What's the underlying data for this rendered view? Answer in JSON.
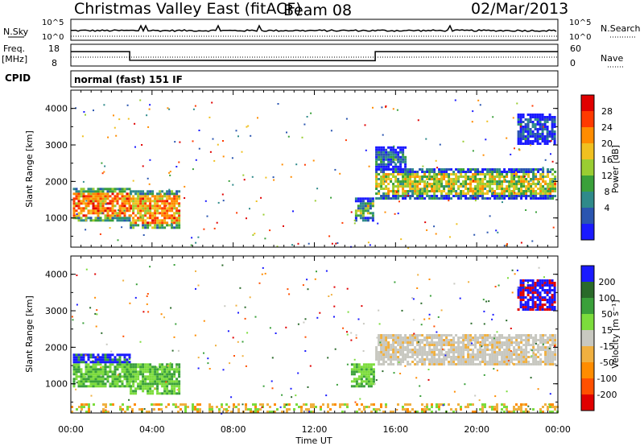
{
  "header": {
    "title": "Christmas Valley East (fitACF)",
    "beam": "Beam 08",
    "date": "02/Mar/2013"
  },
  "top_panels": {
    "nsky_label": "N.Sky",
    "nsky_ticks": [
      "10^5",
      "10^0"
    ],
    "nsearch_label": "N.Search",
    "nsearch_ticks": [
      "10^5",
      "10^0"
    ],
    "freq_label_1": "Freq.",
    "freq_label_2": "[MHz]",
    "freq_ticks": [
      "18",
      "8"
    ],
    "nave_label": "Nave",
    "nave_ticks": [
      "60",
      "0"
    ],
    "cpid_label": "CPID",
    "cpid_value": "normal (fast) 151 IF"
  },
  "chart_data": [
    {
      "type": "heatmap",
      "name": "power",
      "ylabel": "Slant Range [km]",
      "xlabel": "",
      "x_ticks": [
        "00:00",
        "04:00",
        "08:00",
        "12:00",
        "16:00",
        "20:00",
        "00:00"
      ],
      "y_ticks": [
        "1000",
        "2000",
        "3000",
        "4000"
      ],
      "ylim": [
        200,
        4500
      ],
      "xlim_hours": [
        0,
        24
      ],
      "colorbar_label": "Power [dB]",
      "colorbar_ticks": [
        "4",
        "8",
        "12",
        "16",
        "20",
        "24",
        "28"
      ],
      "colorbar_colors": [
        "#1a1aff",
        "#2a55b0",
        "#2f8a8a",
        "#3aa03a",
        "#9acd32",
        "#f0c020",
        "#ff8c00",
        "#ff3a00",
        "#e00000"
      ],
      "regions": [
        {
          "t0": 0.1,
          "t1": 2.9,
          "r0": 900,
          "r1": 1800,
          "level": 0.9
        },
        {
          "t0": 2.9,
          "t1": 5.3,
          "r0": 700,
          "r1": 1700,
          "level": 0.85
        },
        {
          "t0": 14.0,
          "t1": 14.9,
          "r0": 900,
          "r1": 1500,
          "level": 0.6
        },
        {
          "t0": 15.0,
          "t1": 23.9,
          "r0": 1500,
          "r1": 2300,
          "level": 0.7
        },
        {
          "t0": 15.0,
          "t1": 16.5,
          "r0": 2300,
          "r1": 2900,
          "level": 0.4
        },
        {
          "t0": 22.0,
          "t1": 23.8,
          "r0": 3000,
          "r1": 3800,
          "level": 0.3
        }
      ]
    },
    {
      "type": "heatmap",
      "name": "velocity",
      "ylabel": "Slant Range [km]",
      "xlabel": "Time UT",
      "x_ticks": [
        "00:00",
        "04:00",
        "08:00",
        "12:00",
        "16:00",
        "20:00",
        "00:00"
      ],
      "y_ticks": [
        "1000",
        "2000",
        "3000",
        "4000"
      ],
      "ylim": [
        200,
        4500
      ],
      "xlim_hours": [
        0,
        24
      ],
      "colorbar_label": "Velocity [m s⁻¹]",
      "colorbar_ticks": [
        "200",
        "100",
        "50",
        "15",
        "-15",
        "-50",
        "-100",
        "-200"
      ],
      "colorbar_colors": [
        "#1a1aff",
        "#2a6a2a",
        "#3aa03a",
        "#7cdc3c",
        "#c8c8c0",
        "#f0b040",
        "#ff8c00",
        "#ff5000",
        "#e00000"
      ],
      "regions": [
        {
          "t0": 0.1,
          "t1": 2.9,
          "r0": 900,
          "r1": 1800,
          "kind": "blue-green"
        },
        {
          "t0": 2.9,
          "t1": 5.3,
          "r0": 700,
          "r1": 1500,
          "kind": "green"
        },
        {
          "t0": 13.8,
          "t1": 14.9,
          "r0": 900,
          "r1": 1500,
          "kind": "green"
        },
        {
          "t0": 15.0,
          "t1": 23.9,
          "r0": 1500,
          "r1": 2300,
          "kind": "grey"
        },
        {
          "t0": 0.0,
          "t1": 24.0,
          "r0": 200,
          "r1": 450,
          "kind": "orange"
        },
        {
          "t0": 22.0,
          "t1": 23.8,
          "r0": 3000,
          "r1": 3800,
          "kind": "blue"
        }
      ]
    }
  ]
}
